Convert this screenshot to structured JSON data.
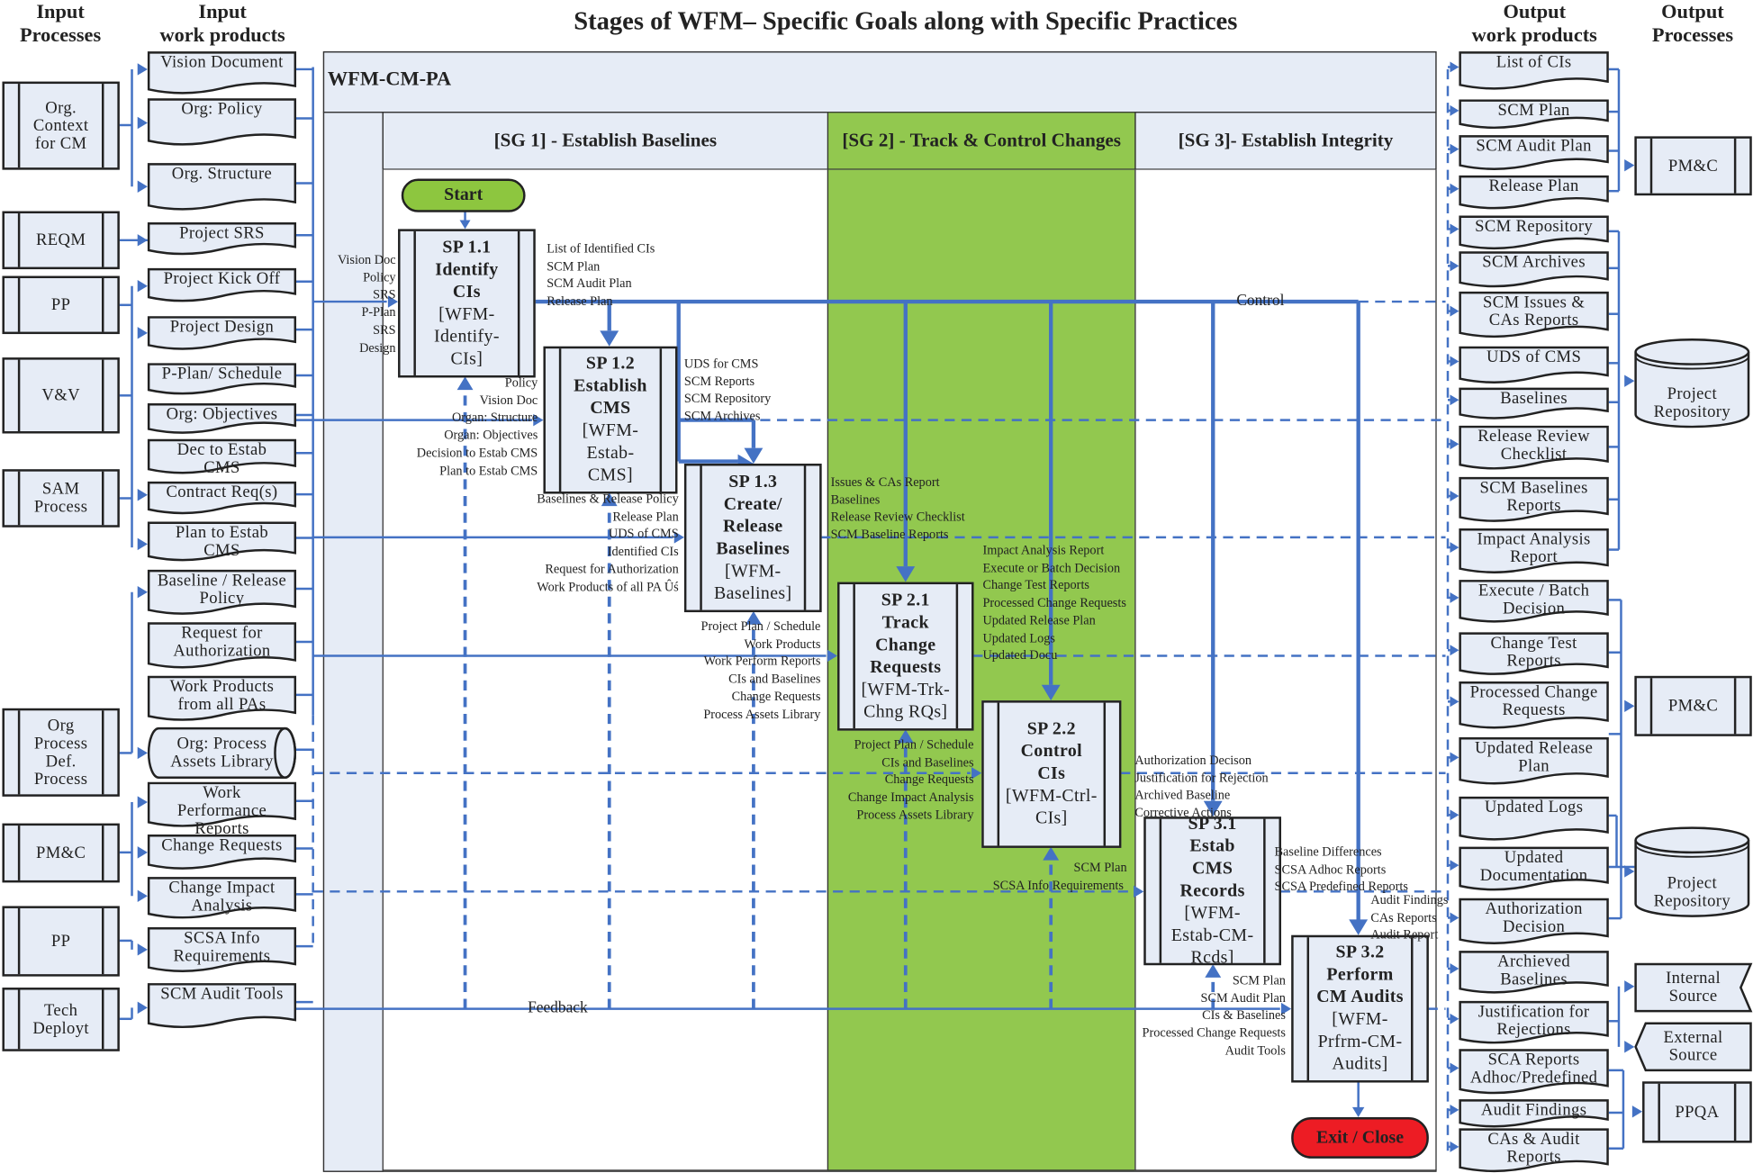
{
  "title": "Stages of WFM– Specific Goals along with Specific Practices",
  "headers": {
    "input_processes": "Input\nProcesses",
    "input_work_products": "Input\nwork products",
    "output_work_products": "Output\nwork products",
    "output_processes": "Output\nProcesses"
  },
  "pa_label": "WFM-CM-PA",
  "goals": [
    {
      "label": "[SG 1] - Establish Baselines"
    },
    {
      "label": "[SG 2] - Track & Control Changes"
    },
    {
      "label": "[SG 3]- Establish Integrity"
    }
  ],
  "input_processes": [
    "Org.\nContext\nfor CM",
    "REQM",
    "PP",
    "V&V",
    "SAM\nProcess",
    "Org\nProcess\nDef.\nProcess",
    "PM&C",
    "PP",
    "Tech\nDeployt"
  ],
  "input_work_products": [
    "Vision Document",
    "Org: Policy",
    "Org. Structure",
    "Project SRS",
    "Project Kick Off",
    "Project Design",
    "P-Plan/ Schedule",
    "Org: Objectives",
    "Dec to Estab\nCMS",
    "Contract Req(s)",
    "Plan to Estab\nCMS",
    "Baseline / Release\nPolicy",
    "Request for\nAuthorization",
    "Work Products\nfrom all PAs",
    "Org: Process\nAssets Library",
    "Work\nPerformance\nReports",
    "Change Requests",
    "Change Impact\nAnalysis",
    "SCSA Info\nRequirements",
    "SCM Audit Tools"
  ],
  "output_work_products": [
    "List of CIs",
    "SCM Plan",
    "SCM Audit Plan",
    "Release Plan",
    "SCM Repository",
    "SCM Archives",
    "SCM Issues &\nCAs Reports",
    "UDS of CMS",
    "Baselines",
    "Release Review\nChecklist",
    "SCM Baselines\nReports",
    "Impact Analysis\nReport",
    "Execute / Batch\nDecision",
    "Change Test\nReports",
    "Processed Change\nRequests",
    "Updated Release\nPlan",
    "Updated Logs",
    "Updated\nDocumentation",
    "Authorization\nDecision",
    "Archieved\nBaselines",
    "Justification for\nRejections",
    "SCA Reports\nAdhoc/Predefined",
    "Audit Findings",
    "CAs & Audit\nReports"
  ],
  "output_processes": [
    "PM&C",
    "Project\nRepository",
    "PM&C",
    "Project\nRepository",
    "Internal\nSource",
    "External\nSource",
    "PPQA"
  ],
  "practices": [
    {
      "id": "SP 1.1",
      "title": "Identify\nCIs",
      "code": "[WFM-\nIdentify-\nCIs]"
    },
    {
      "id": "SP 1.2",
      "title": "Establish\nCMS",
      "code": "[WFM-\nEstab-\nCMS]"
    },
    {
      "id": "SP 1.3",
      "title": "Create/\nRelease\nBaselines",
      "code": "[WFM-\nBaselines]"
    },
    {
      "id": "SP 2.1",
      "title": "Track\nChange\nRequests",
      "code": "[WFM-Trk-\nChng RQs]"
    },
    {
      "id": "SP 2.2",
      "title": "Control\nCIs",
      "code": "[WFM-Ctrl-\nCIs]"
    },
    {
      "id": "SP 3.1",
      "title": "Estab\nCMS\nRecords",
      "code": "[WFM-\nEstab-CM-\nRcds]"
    },
    {
      "id": "SP 3.2",
      "title": "Perform\nCM Audits",
      "code": "[WFM-\nPrfrm-CM-\nAudits]"
    }
  ],
  "start": "Start",
  "exit": "Exit / Close",
  "control_label": "Control",
  "feedback_label": "Feedback",
  "flow_labels": [
    "Vision Doc\nPolicy\nSRS\nP-Plan\nSRS\nDesign",
    "List of Identified CIs\nSCM Plan\nSCM Audit Plan\nRelease Plan",
    "Policy\nVision Doc\nOrgan: Structure\nOrgan: Objectives\nDecision to Estab CMS\nPlan to Estab CMS",
    "UDS for CMS\nSCM Reports\nSCM Repository\nSCM Archives",
    "Baselines  & Release Policy\nRelease Plan\nUDS of CMS\nIdentified CIs\nRequest for Authorization\nWork Products of all PA Ûś",
    "Issues & CAs Report\nBaselines\nRelease Review Checklist\nSCM Baseline Reports",
    "Impact Analysis Report\nExecute or Batch Decision\nChange Test Reports\nProcessed Change Requests\nUpdated Release Plan\nUpdated Logs\nUpdated Docu",
    "Project Plan / Schedule\nWork Products\nWork Perform Reports\nCIs and Baselines\nChange Requests\nProcess Assets Library",
    "Project Plan / Schedule\nCIs and Baselines\nChange Requests\nChange Impact Analysis\nProcess Assets Library",
    "Authorization Decison\nJustification for Rejection\nArchived Baseline\nCorrective Actions",
    "SCM Plan",
    "SCSA Info Requirements",
    "Baseline Differences\nSCSA Adhoc Reports\nSCSA Predefined Reports",
    "Audit Findings\nCAs Reports\nAudit Report",
    "SCM Plan\nSCM Audit Plan\nCIs & Baselines\nProcessed Change Requests\nAudit Tools"
  ],
  "colors": {
    "line": "#4472c4",
    "fill": "#e6ecf6",
    "sg2": "#92c84f",
    "start": "#8dc63f",
    "exit": "#ed1c24",
    "border": "#222222"
  }
}
